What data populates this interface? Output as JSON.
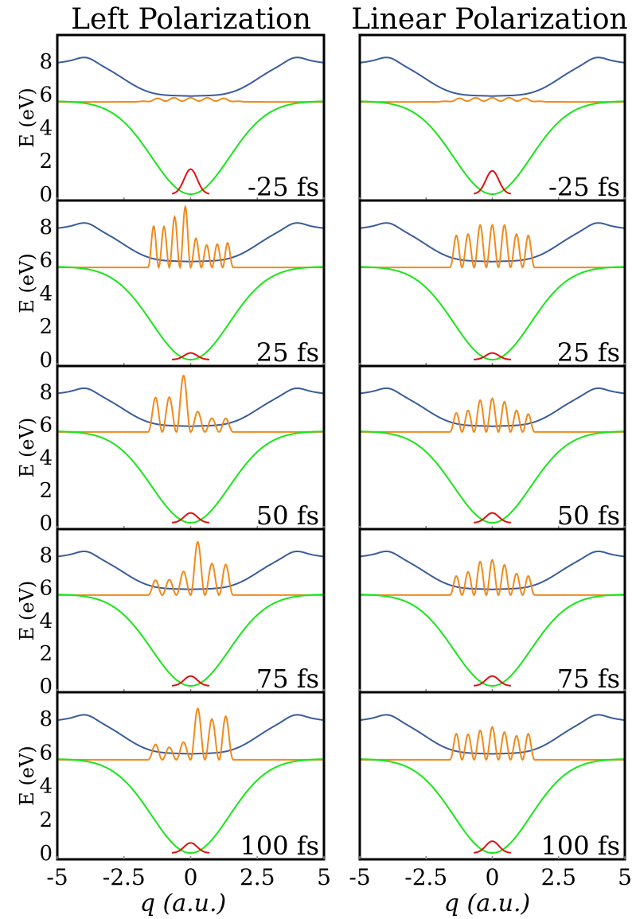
{
  "figure": {
    "column_titles": [
      "Left Polarization",
      "Linear Polarization"
    ],
    "y_axis_label": "E (eV)",
    "x_axis_label": "q (a.u.)",
    "x_tick_labels": [
      "-5",
      "-2.5",
      "0",
      "2.5",
      "5"
    ],
    "y_tick_labels": [
      "0",
      "2",
      "4",
      "6",
      "8"
    ]
  },
  "colors": {
    "ground_state": "#19e619",
    "excited_upper": "#3a5c9c",
    "excited_lower": "#f08a1c",
    "wavepacket_ground": "#e01010"
  },
  "chart_data": [
    {
      "type": "line",
      "panel": "left",
      "time_label": "-25 fs",
      "xlim": [
        -5,
        5
      ],
      "ylim": [
        0,
        9
      ],
      "ground_packet_peak": 1.5,
      "excited_packet": {
        "peaks": [
          5.8,
          5.8,
          5.8,
          5.8,
          5.8,
          5.8,
          5.8,
          5.8
        ],
        "amplitude_eV": 0.1
      }
    },
    {
      "type": "line",
      "panel": "right",
      "time_label": "-25 fs",
      "xlim": [
        -5,
        5
      ],
      "ylim": [
        0,
        9
      ],
      "ground_packet_peak": 1.4,
      "excited_packet": {
        "peaks": [
          5.7,
          5.7,
          5.7,
          5.7,
          5.7,
          5.7,
          5.7,
          5.7
        ],
        "amplitude_eV": 0.1
      }
    },
    {
      "type": "line",
      "panel": "left",
      "time_label": "25 fs",
      "xlim": [
        -5,
        5
      ],
      "ylim": [
        0,
        9
      ],
      "ground_packet_peak": 0.4,
      "excited_packet": {
        "peaks": [
          9.0,
          8.1,
          8.6,
          9.2,
          7.3,
          6.9,
          7.0,
          7.6
        ]
      }
    },
    {
      "type": "line",
      "panel": "right",
      "time_label": "25 fs",
      "xlim": [
        -5,
        5
      ],
      "ylim": [
        0,
        9
      ],
      "ground_packet_peak": 0.4,
      "excited_packet": {
        "peaks": [
          8.1,
          7.6,
          8.1,
          8.1,
          8.1,
          7.6,
          8.1
        ]
      }
    },
    {
      "type": "line",
      "panel": "left",
      "time_label": "50 fs",
      "xlim": [
        -5,
        5
      ],
      "ylim": [
        0,
        9
      ],
      "ground_packet_peak": 0.6,
      "excited_packet": {
        "peaks": [
          8.2,
          7.7,
          9.0,
          6.8,
          6.4,
          6.6
        ]
      }
    },
    {
      "type": "line",
      "panel": "right",
      "time_label": "50 fs",
      "xlim": [
        -5,
        5
      ],
      "ylim": [
        0,
        9
      ],
      "ground_packet_peak": 0.6,
      "excited_packet": {
        "peaks": [
          7.1,
          6.9,
          7.5,
          7.6,
          7.4,
          6.9,
          7.0
        ]
      }
    },
    {
      "type": "line",
      "panel": "left",
      "time_label": "75 fs",
      "xlim": [
        -5,
        5
      ],
      "ylim": [
        0,
        9
      ],
      "ground_packet_peak": 0.6,
      "excited_packet": {
        "peaks": [
          6.7,
          6.5,
          7.0,
          8.8,
          7.5,
          7.9
        ]
      }
    },
    {
      "type": "line",
      "panel": "right",
      "time_label": "75 fs",
      "xlim": [
        -5,
        5
      ],
      "ylim": [
        0,
        9
      ],
      "ground_packet_peak": 0.6,
      "excited_packet": {
        "peaks": [
          7.1,
          7.0,
          7.6,
          7.7,
          7.4,
          6.9,
          7.1
        ]
      }
    },
    {
      "type": "line",
      "panel": "left",
      "time_label": "100 fs",
      "xlim": [
        -5,
        5
      ],
      "ylim": [
        0,
        9
      ],
      "ground_packet_peak": 0.6,
      "excited_packet": {
        "peaks": [
          6.7,
          6.3,
          6.6,
          8.6,
          8.0,
          8.8
        ]
      }
    },
    {
      "type": "line",
      "panel": "right",
      "time_label": "100 fs",
      "xlim": [
        -5,
        5
      ],
      "ylim": [
        0,
        9
      ],
      "ground_packet_peak": 0.7,
      "excited_packet": {
        "peaks": [
          7.6,
          7.1,
          7.3,
          7.5,
          7.2,
          7.0,
          7.6
        ]
      }
    }
  ]
}
